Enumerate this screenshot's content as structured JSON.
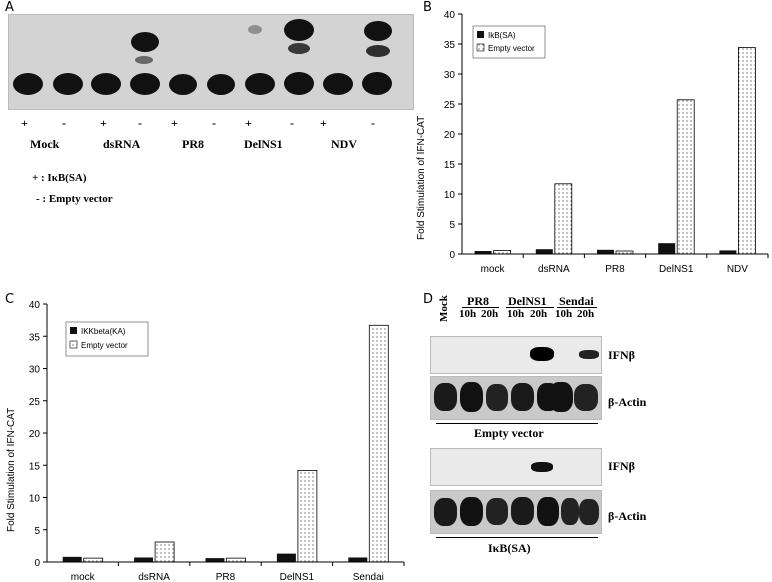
{
  "panel_a": {
    "letter": "A",
    "pm": [
      "+",
      "-",
      "+",
      "-",
      "+",
      "-",
      "+",
      "-",
      "+",
      "-"
    ],
    "groups": [
      "Mock",
      "dsRNA",
      "PR8",
      "DelNS1",
      "NDV"
    ],
    "legend_plus": "+ :  IκB(SA)",
    "legend_minus": "- : Empty vector"
  },
  "panel_b": {
    "letter": "B",
    "ylabel": "Fold Stimulation of IFN-CAT",
    "yticks": [
      "0",
      "5",
      "10",
      "15",
      "20",
      "25",
      "30",
      "35",
      "40"
    ],
    "categories": [
      "mock",
      "dsRNA",
      "PR8",
      "DelNS1",
      "NDV"
    ],
    "legend": [
      "IkB(SA)",
      "Empty vector"
    ]
  },
  "panel_c": {
    "letter": "C",
    "ylabel": "Fold Stimulation of IFN-CAT",
    "yticks": [
      "0",
      "5",
      "10",
      "15",
      "20",
      "25",
      "30",
      "35",
      "40"
    ],
    "categories": [
      "mock",
      "dsRNA",
      "PR8",
      "DelNS1",
      "Sendai"
    ],
    "legend": [
      "IKKbeta(KA)",
      "Empty vector"
    ]
  },
  "panel_d": {
    "letter": "D",
    "mock": "Mock",
    "groups": [
      "PR8",
      "DelNS1",
      "Sendai"
    ],
    "times": [
      "10h",
      "20h",
      "10h",
      "20h",
      "10h",
      "20h"
    ],
    "ifnb": "IFNβ",
    "actin": "β-Actin",
    "empty": "Empty vector",
    "iksa": "IκB(SA)"
  },
  "chart_data": [
    {
      "type": "bar",
      "panel": "B",
      "categories": [
        "mock",
        "dsRNA",
        "PR8",
        "DelNS1",
        "NDV"
      ],
      "series": [
        {
          "name": "IkB(SA)",
          "values": [
            0.5,
            0.8,
            0.7,
            1.8,
            0.6
          ]
        },
        {
          "name": "Empty vector",
          "values": [
            0.6,
            11.7,
            0.5,
            25.7,
            34.4
          ]
        }
      ],
      "ylabel": "Fold Stimulation of IFN-CAT",
      "ylim": [
        0,
        40
      ],
      "legend_position": "top-left"
    },
    {
      "type": "bar",
      "panel": "C",
      "categories": [
        "mock",
        "dsRNA",
        "PR8",
        "DelNS1",
        "Sendai"
      ],
      "series": [
        {
          "name": "IKKbeta(KA)",
          "values": [
            0.8,
            0.7,
            0.6,
            1.3,
            0.7
          ]
        },
        {
          "name": "Empty vector",
          "values": [
            0.6,
            3.1,
            0.6,
            14.2,
            36.7
          ]
        }
      ],
      "ylabel": "Fold Stimulation of IFN-CAT",
      "ylim": [
        0,
        40
      ],
      "legend_position": "top-left"
    }
  ]
}
